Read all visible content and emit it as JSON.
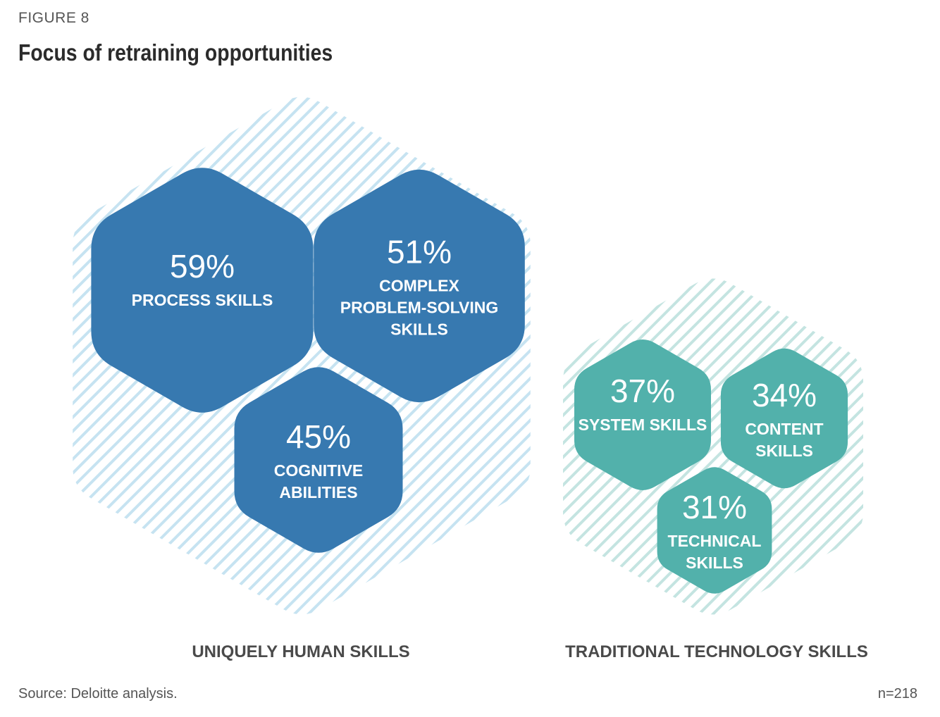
{
  "figure_label": "FIGURE 8",
  "title": "Focus of retraining opportunities",
  "source": "Source: Deloitte analysis.",
  "sample_size": "n=218",
  "colors": {
    "human": "#3779b0",
    "human_hatch": "#c6e3f1",
    "tech": "#52b1ab",
    "tech_hatch": "#c4e4e1"
  },
  "chart_data": {
    "type": "bubble-hexagon",
    "title": "Focus of retraining opportunities",
    "groups": [
      {
        "name": "UNIQUELY HUMAN SKILLS",
        "items": [
          {
            "value": 59,
            "value_label": "59%",
            "label_lines": [
              "PROCESS SKILLS"
            ]
          },
          {
            "value": 51,
            "value_label": "51%",
            "label_lines": [
              "COMPLEX",
              "PROBLEM-SOLVING",
              "SKILLS"
            ]
          },
          {
            "value": 45,
            "value_label": "45%",
            "label_lines": [
              "COGNITIVE",
              "ABILITIES"
            ]
          }
        ]
      },
      {
        "name": "TRADITIONAL TECHNOLOGY SKILLS",
        "items": [
          {
            "value": 37,
            "value_label": "37%",
            "label_lines": [
              "SYSTEM SKILLS"
            ]
          },
          {
            "value": 34,
            "value_label": "34%",
            "label_lines": [
              "CONTENT",
              "SKILLS"
            ]
          },
          {
            "value": 31,
            "value_label": "31%",
            "label_lines": [
              "TECHNICAL",
              "SKILLS"
            ]
          }
        ]
      }
    ]
  }
}
